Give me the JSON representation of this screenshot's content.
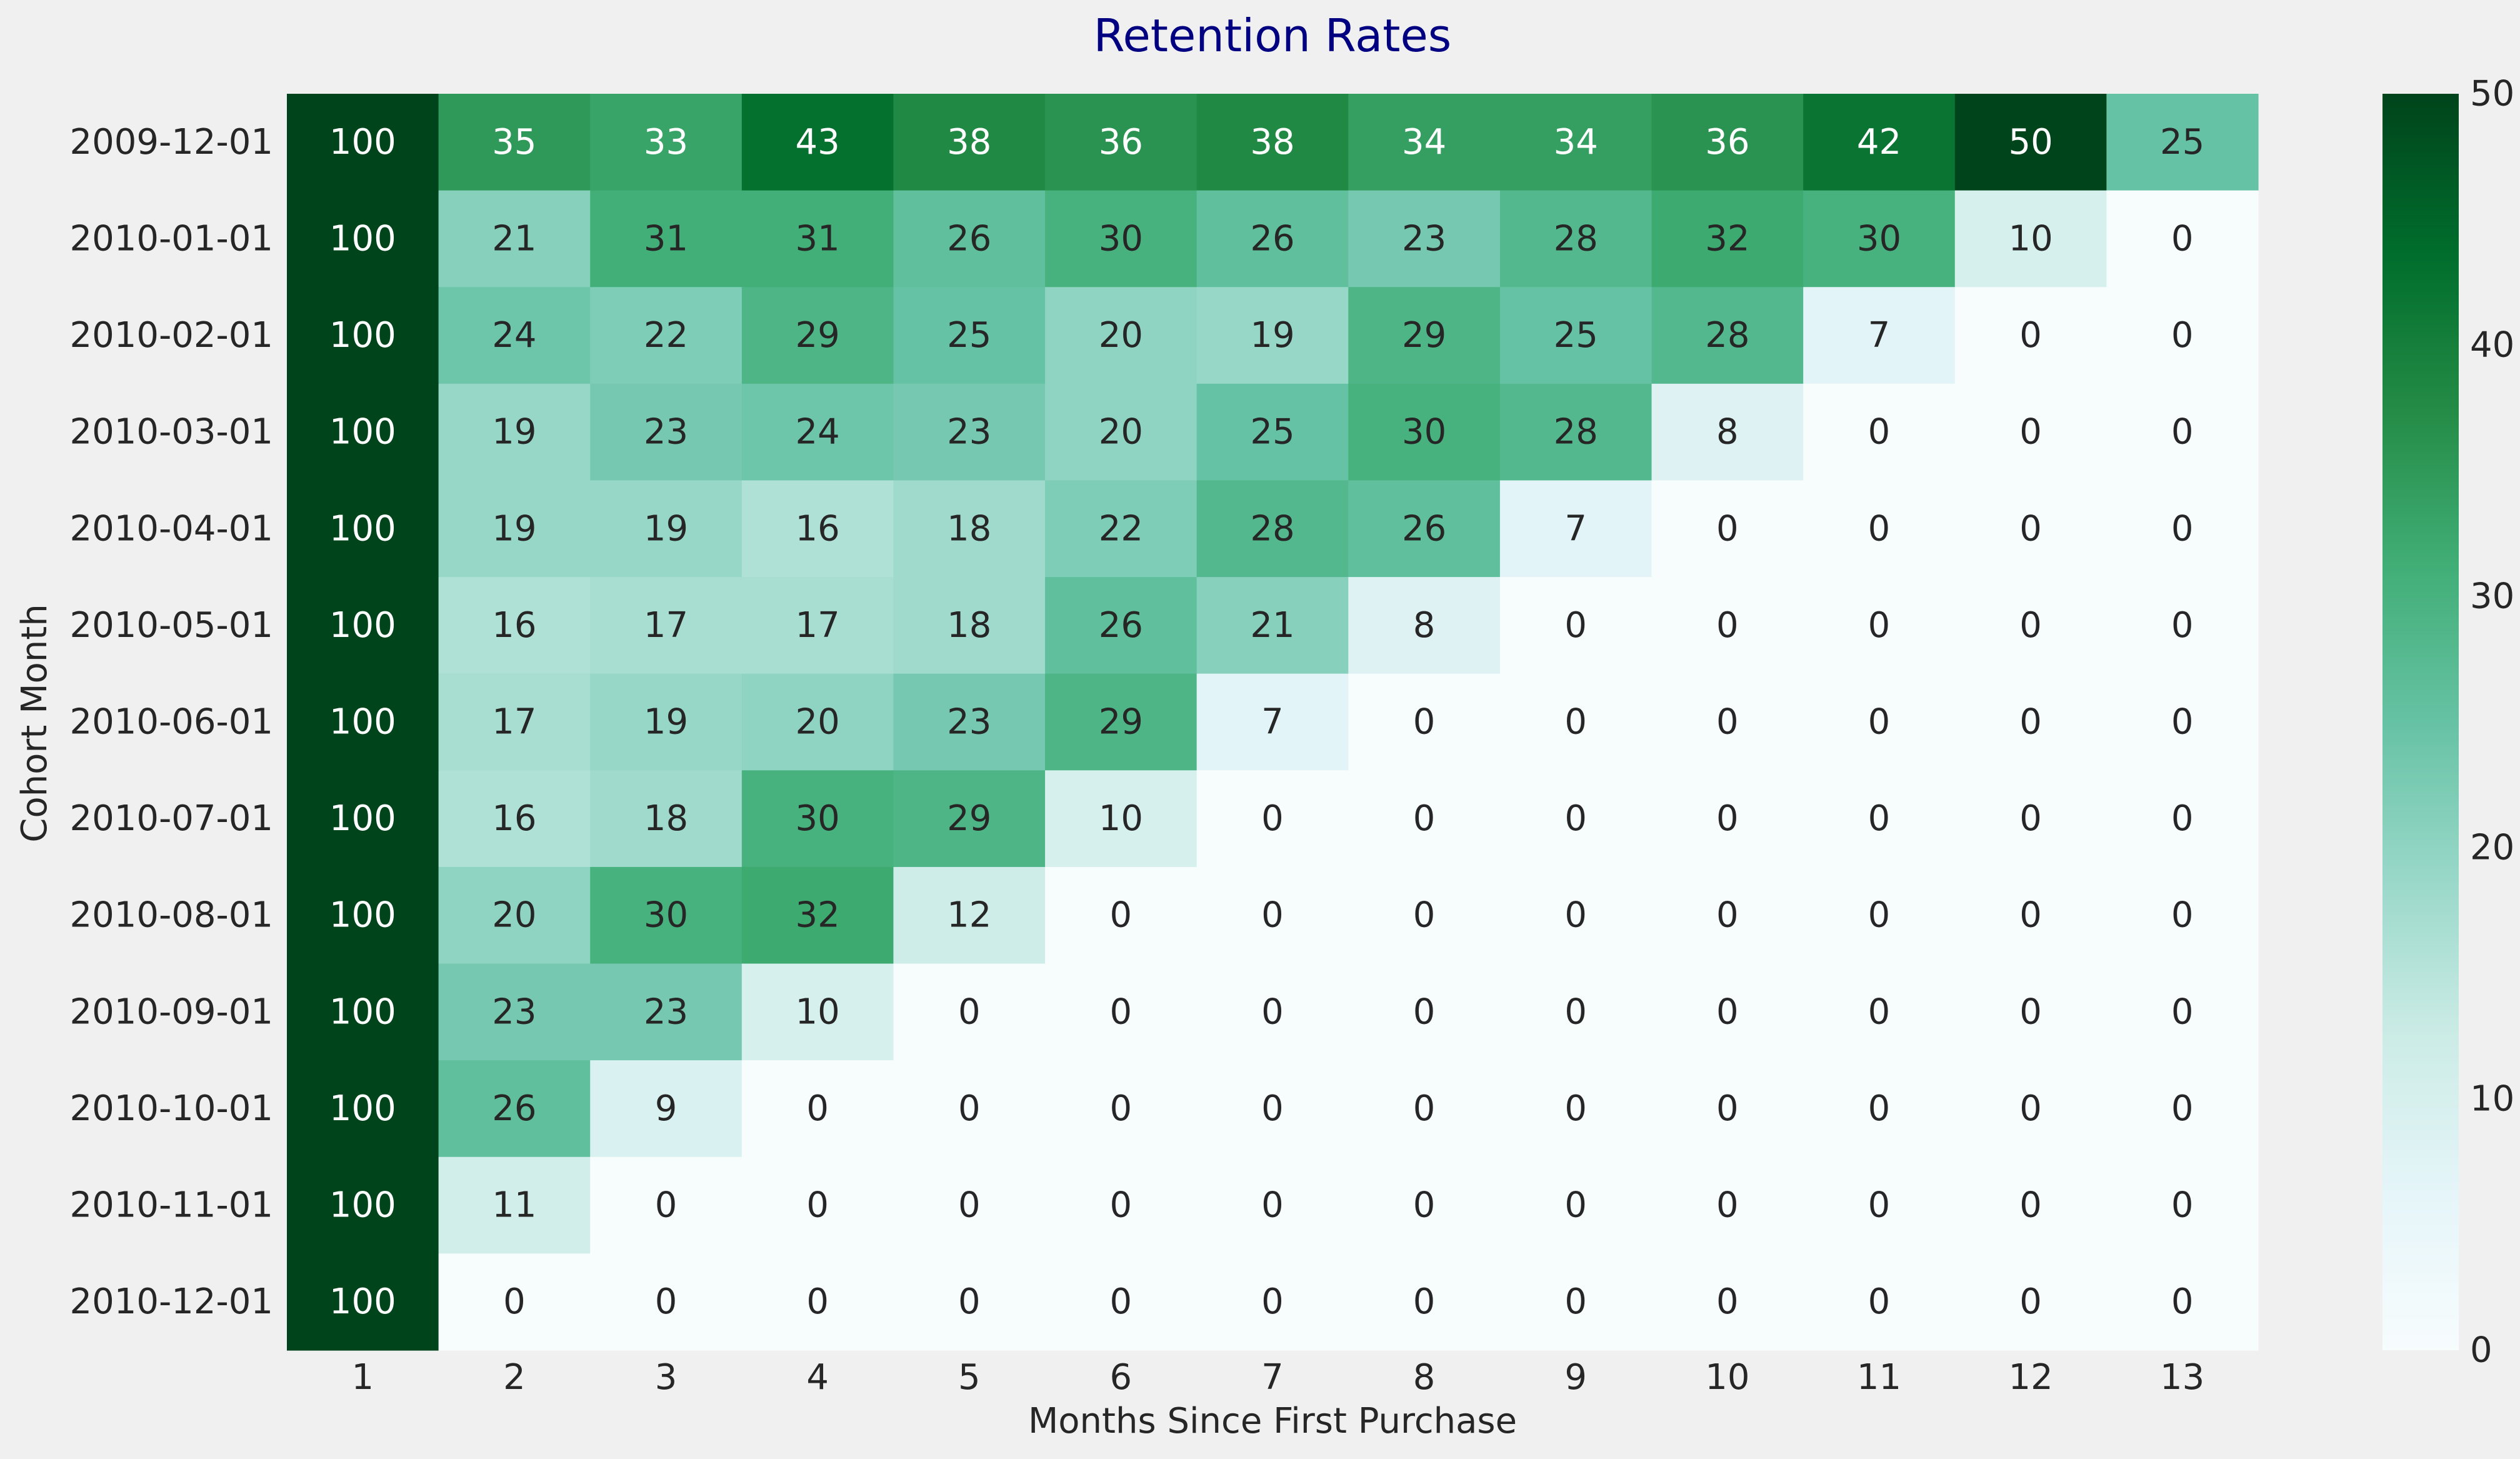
{
  "chart_data": {
    "type": "heatmap",
    "title": "Retention Rates",
    "xlabel": "Months Since First Purchase",
    "ylabel": "Cohort Month",
    "x_categories": [
      "1",
      "2",
      "3",
      "4",
      "5",
      "6",
      "7",
      "8",
      "9",
      "10",
      "11",
      "12",
      "13"
    ],
    "y_categories": [
      "2009-12-01",
      "2010-01-01",
      "2010-02-01",
      "2010-03-01",
      "2010-04-01",
      "2010-05-01",
      "2010-06-01",
      "2010-07-01",
      "2010-08-01",
      "2010-09-01",
      "2010-10-01",
      "2010-11-01",
      "2010-12-01"
    ],
    "values": [
      [
        100,
        35,
        33,
        43,
        38,
        36,
        38,
        34,
        34,
        36,
        42,
        50,
        25
      ],
      [
        100,
        21,
        31,
        31,
        26,
        30,
        26,
        23,
        28,
        32,
        30,
        10,
        0
      ],
      [
        100,
        24,
        22,
        29,
        25,
        20,
        19,
        29,
        25,
        28,
        7,
        0,
        0
      ],
      [
        100,
        19,
        23,
        24,
        23,
        20,
        25,
        30,
        28,
        8,
        0,
        0,
        0
      ],
      [
        100,
        19,
        19,
        16,
        18,
        22,
        28,
        26,
        7,
        0,
        0,
        0,
        0
      ],
      [
        100,
        16,
        17,
        17,
        18,
        26,
        21,
        8,
        0,
        0,
        0,
        0,
        0
      ],
      [
        100,
        17,
        19,
        20,
        23,
        29,
        7,
        0,
        0,
        0,
        0,
        0,
        0
      ],
      [
        100,
        16,
        18,
        30,
        29,
        10,
        0,
        0,
        0,
        0,
        0,
        0,
        0
      ],
      [
        100,
        20,
        30,
        32,
        12,
        0,
        0,
        0,
        0,
        0,
        0,
        0,
        0
      ],
      [
        100,
        23,
        23,
        10,
        0,
        0,
        0,
        0,
        0,
        0,
        0,
        0,
        0
      ],
      [
        100,
        26,
        9,
        0,
        0,
        0,
        0,
        0,
        0,
        0,
        0,
        0,
        0
      ],
      [
        100,
        11,
        0,
        0,
        0,
        0,
        0,
        0,
        0,
        0,
        0,
        0,
        0
      ],
      [
        100,
        0,
        0,
        0,
        0,
        0,
        0,
        0,
        0,
        0,
        0,
        0,
        0
      ]
    ],
    "color_range": [
      0,
      50
    ],
    "colorbar_ticks": [
      "0",
      "10",
      "20",
      "30",
      "40",
      "50"
    ],
    "colormap": "Greens",
    "colormap_stops": [
      "#f7fcfd",
      "#e5f5f9",
      "#ccece6",
      "#99d8c9",
      "#66c2a4",
      "#41ae76",
      "#238b45",
      "#006d2c",
      "#00441b"
    ],
    "title_color": "#000080",
    "background": "#f0f0f0",
    "grid": false
  }
}
